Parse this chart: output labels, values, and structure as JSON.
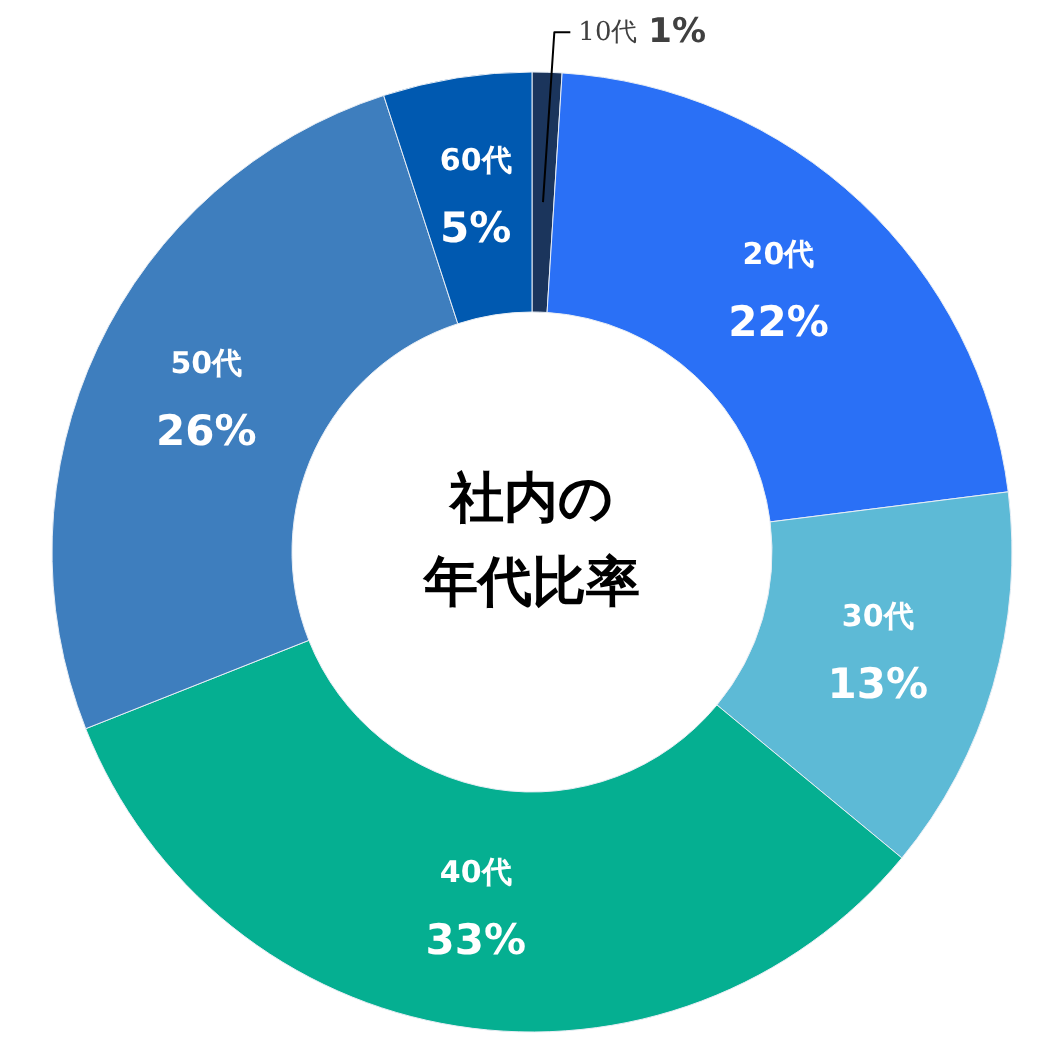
{
  "chart_data": {
    "type": "donut",
    "title": "社内の年代比率",
    "categories": [
      "10代",
      "20代",
      "30代",
      "40代",
      "50代",
      "60代"
    ],
    "values": [
      1,
      22,
      13,
      33,
      26,
      5
    ],
    "colors": [
      "#1b355c",
      "#2a70f6",
      "#5dbad6",
      "#05af91",
      "#3e7ebe",
      "#0059b0"
    ],
    "value_labels": [
      "1%",
      "22%",
      "13%",
      "33%",
      "26%",
      "5%"
    ]
  }
}
